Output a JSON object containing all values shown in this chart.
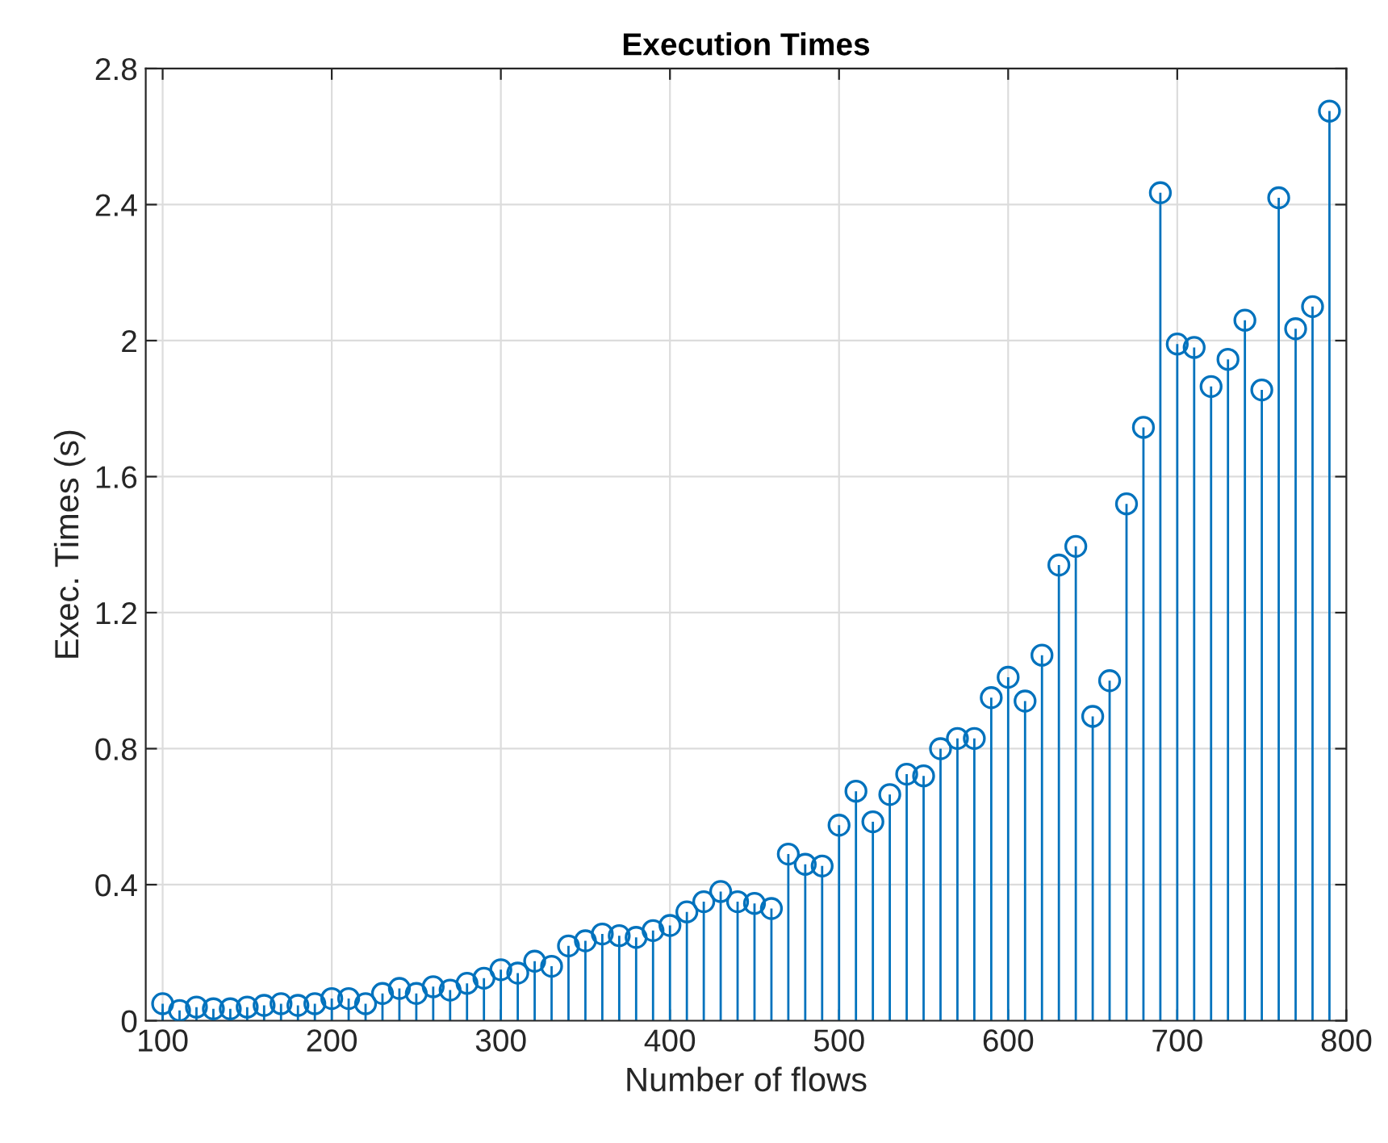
{
  "chart_data": {
    "type": "lollipop",
    "title": "Execution Times",
    "xlabel": "Number of flows",
    "ylabel": "Exec. Times (s)",
    "x": [
      100,
      110,
      120,
      130,
      140,
      150,
      160,
      170,
      180,
      190,
      200,
      210,
      220,
      230,
      240,
      250,
      260,
      270,
      280,
      290,
      300,
      310,
      320,
      330,
      340,
      350,
      360,
      370,
      380,
      390,
      400,
      410,
      420,
      430,
      440,
      450,
      460,
      470,
      480,
      490,
      500,
      510,
      520,
      530,
      540,
      550,
      560,
      570,
      580,
      590,
      600,
      610,
      620,
      630,
      640,
      650,
      660,
      670,
      680,
      690,
      700,
      710,
      720,
      730,
      740,
      750,
      760,
      770,
      780,
      790
    ],
    "series": [
      {
        "color": "#0072bd",
        "values": [
          0.05,
          0.03,
          0.04,
          0.035,
          0.035,
          0.04,
          0.045,
          0.05,
          0.045,
          0.05,
          0.065,
          0.065,
          0.05,
          0.08,
          0.095,
          0.08,
          0.1,
          0.09,
          0.11,
          0.125,
          0.15,
          0.14,
          0.175,
          0.16,
          0.22,
          0.235,
          0.255,
          0.25,
          0.245,
          0.265,
          0.28,
          0.32,
          0.35,
          0.38,
          0.35,
          0.345,
          0.33,
          0.49,
          0.46,
          0.455,
          0.575,
          0.675,
          0.585,
          0.665,
          0.725,
          0.72,
          0.8,
          0.83,
          0.83,
          0.95,
          1.01,
          0.94,
          1.075,
          1.34,
          1.395,
          0.895,
          1.0,
          1.52,
          1.745,
          2.435,
          1.99,
          1.98,
          1.865,
          1.945,
          2.06,
          1.855,
          2.42,
          2.035,
          2.1,
          2.675
        ]
      }
    ],
    "xlim": [
      90,
      800
    ],
    "xticks": [
      100,
      200,
      300,
      400,
      500,
      600,
      700,
      800
    ],
    "ylim": [
      0,
      2.8
    ],
    "yticks": [
      0,
      0.4,
      0.8,
      1.2,
      1.6,
      2,
      2.4,
      2.8
    ],
    "grid": true,
    "marker": "circle"
  }
}
